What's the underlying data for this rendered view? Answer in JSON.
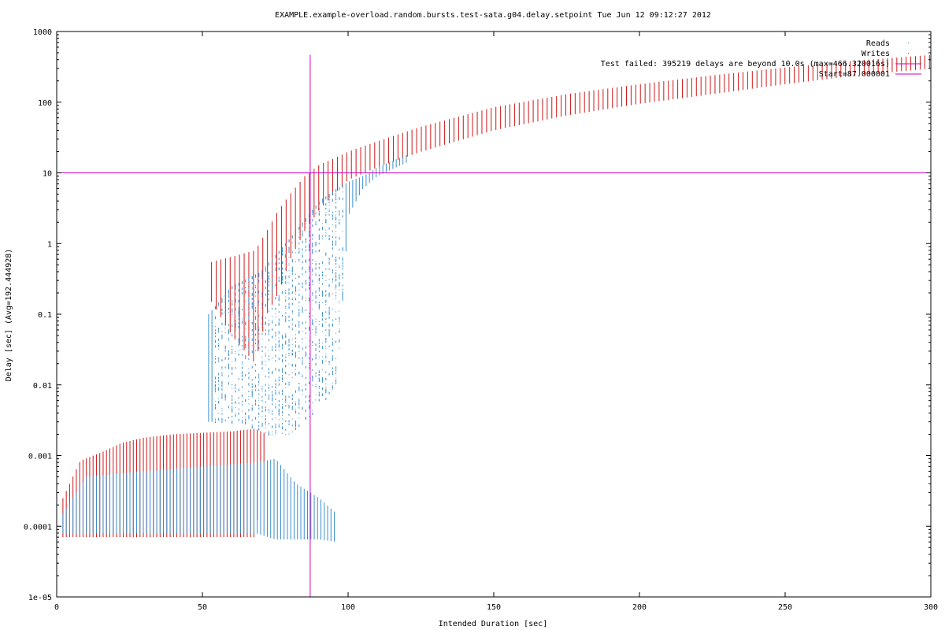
{
  "chart_data": {
    "type": "scatter",
    "title": "EXAMPLE.example-overload.random.bursts.test-sata.g04.delay.setpoint Tue Jun 12 09:12:27 2012",
    "xlabel": "Intended Duration [sec]",
    "ylabel": "Delay [sec]  (Avg=192.444928)",
    "xlim": [
      0,
      300
    ],
    "ylim": [
      1e-05,
      1000
    ],
    "y_scale": "log",
    "grid": false,
    "legend_position": "top-right",
    "x_ticks": [
      "0",
      "50",
      "100",
      "150",
      "200",
      "250",
      "300"
    ],
    "x_tick_values": [
      0,
      50,
      100,
      150,
      200,
      250,
      300
    ],
    "y_ticks": [
      "1e-05",
      "0.0001",
      "0.001",
      "0.01",
      "0.1",
      "1",
      "10",
      "100",
      "1000"
    ],
    "y_tick_values": [
      1e-05,
      0.0001,
      0.001,
      0.01,
      0.1,
      1,
      10,
      100,
      1000
    ],
    "legend": [
      {
        "label": "Reads",
        "color": "#3a8fd0",
        "style": "dots"
      },
      {
        "label": "Writes",
        "color": "#d01818",
        "style": "dots"
      },
      {
        "label": "Test failed: 395219 delays are beyond 10.0s (max=466.320016s)",
        "color": "#cc00cc",
        "style": "line"
      },
      {
        "label": "Start=87.000001",
        "color": "#cc00cc",
        "style": "line"
      }
    ],
    "threshold_y": 10.0,
    "start_x": 87.000001,
    "start_line_top_y": 466.320016,
    "writes_series": [
      {
        "x": 2,
        "low": 7e-05,
        "high": 0.00025
      },
      {
        "x": 8,
        "low": 7e-05,
        "high": 0.00085
      },
      {
        "x": 15,
        "low": 7e-05,
        "high": 0.0011
      },
      {
        "x": 22,
        "low": 7e-05,
        "high": 0.0015
      },
      {
        "x": 30,
        "low": 7e-05,
        "high": 0.0018
      },
      {
        "x": 40,
        "low": 7e-05,
        "high": 0.002
      },
      {
        "x": 50,
        "low": 7e-05,
        "high": 0.0021
      },
      {
        "x": 60,
        "low": 7e-05,
        "high": 0.0022
      },
      {
        "x": 68,
        "low": 7e-05,
        "high": 0.0024
      },
      {
        "x": 71,
        "low": 0.0008,
        "high": 0.0021
      },
      {
        "x": 53,
        "low": 0.15,
        "high": 0.55
      },
      {
        "x": 60,
        "low": 0.05,
        "high": 0.65
      },
      {
        "x": 68,
        "low": 0.02,
        "high": 0.8
      },
      {
        "x": 72,
        "low": 0.1,
        "high": 1.5
      },
      {
        "x": 76,
        "low": 0.2,
        "high": 3
      },
      {
        "x": 80,
        "low": 0.6,
        "high": 5
      },
      {
        "x": 85,
        "low": 1.5,
        "high": 9
      },
      {
        "x": 90,
        "low": 3,
        "high": 13
      },
      {
        "x": 95,
        "low": 5,
        "high": 16
      },
      {
        "x": 100,
        "low": 8,
        "high": 20
      },
      {
        "x": 110,
        "low": 12,
        "high": 28
      },
      {
        "x": 125,
        "low": 20,
        "high": 45
      },
      {
        "x": 150,
        "low": 40,
        "high": 85
      },
      {
        "x": 175,
        "low": 65,
        "high": 130
      },
      {
        "x": 200,
        "low": 95,
        "high": 180
      },
      {
        "x": 225,
        "low": 130,
        "high": 240
      },
      {
        "x": 250,
        "low": 180,
        "high": 310
      },
      {
        "x": 275,
        "low": 240,
        "high": 390
      },
      {
        "x": 300,
        "low": 300,
        "high": 466
      }
    ],
    "reads_series": [
      {
        "x": 2,
        "low": 8e-05,
        "high": 0.00015
      },
      {
        "x": 10,
        "low": 8e-05,
        "high": 0.0005
      },
      {
        "x": 30,
        "low": 8e-05,
        "high": 0.0006
      },
      {
        "x": 50,
        "low": 8e-05,
        "high": 0.0007
      },
      {
        "x": 68,
        "low": 8e-05,
        "high": 0.0008
      },
      {
        "x": 75,
        "low": 6.5e-05,
        "high": 0.0009
      },
      {
        "x": 82,
        "low": 6.5e-05,
        "high": 0.0004
      },
      {
        "x": 90,
        "low": 6.5e-05,
        "high": 0.00025
      },
      {
        "x": 96,
        "low": 6e-05,
        "high": 0.00015
      },
      {
        "x": 52,
        "low": 0.003,
        "high": 0.1
      },
      {
        "x": 60,
        "low": 0.003,
        "high": 0.25
      },
      {
        "x": 70,
        "low": 0.002,
        "high": 0.4
      },
      {
        "x": 80,
        "low": 0.002,
        "high": 1.2
      },
      {
        "x": 90,
        "low": 0.005,
        "high": 4
      },
      {
        "x": 96,
        "low": 0.01,
        "high": 6
      },
      {
        "x": 100,
        "low": 2.5,
        "high": 7.5
      },
      {
        "x": 105,
        "low": 6,
        "high": 9
      },
      {
        "x": 110,
        "low": 9,
        "high": 12
      },
      {
        "x": 120,
        "low": 14,
        "high": 18
      }
    ]
  }
}
